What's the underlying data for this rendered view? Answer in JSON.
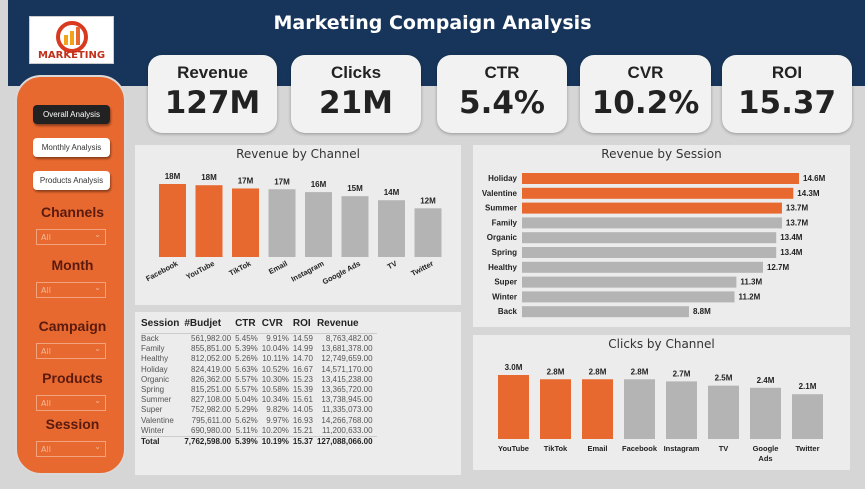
{
  "header": {
    "title": "Marketing Compaign Analysis",
    "logo_text": "MARKETING"
  },
  "sidebar": {
    "nav": [
      "Overall Analysis",
      "Monthly Analysis",
      "Products Analysis"
    ],
    "active": 0,
    "filters": [
      {
        "label": "Channels",
        "value": "All"
      },
      {
        "label": "Month",
        "value": "All"
      },
      {
        "label": "Campaign",
        "value": "All"
      },
      {
        "label": "Products",
        "value": "All"
      },
      {
        "label": "Session",
        "value": "All"
      }
    ]
  },
  "kpis": [
    {
      "label": "Revenue",
      "value": "127M"
    },
    {
      "label": "Clicks",
      "value": "21M"
    },
    {
      "label": "CTR",
      "value": "5.4%"
    },
    {
      "label": "CVR",
      "value": "10.2%"
    },
    {
      "label": "ROI",
      "value": "15.37"
    }
  ],
  "colors": {
    "header": "#17355a",
    "accent": "#e8692f",
    "bar_gray": "#b4b4b4"
  },
  "table": {
    "headers": [
      "Session",
      "#Budjet",
      "CTR",
      "CVR",
      "ROI",
      "Revenue"
    ],
    "rows": [
      [
        "Back",
        "561,982.00",
        "5.45%",
        "9.91%",
        "14.59",
        "8,763,482.00"
      ],
      [
        "Family",
        "855,851.00",
        "5.39%",
        "10.04%",
        "14.99",
        "13,681,378.00"
      ],
      [
        "Healthy",
        "812,052.00",
        "5.26%",
        "10.11%",
        "14.70",
        "12,749,659.00"
      ],
      [
        "Holiday",
        "824,419.00",
        "5.63%",
        "10.52%",
        "16.67",
        "14,571,170.00"
      ],
      [
        "Organic",
        "826,362.00",
        "5.57%",
        "10.30%",
        "15.23",
        "13,415,238.00"
      ],
      [
        "Spring",
        "815,251.00",
        "5.57%",
        "10.58%",
        "15.39",
        "13,365,720.00"
      ],
      [
        "Summer",
        "827,108.00",
        "5.04%",
        "10.34%",
        "15.61",
        "13,738,945.00"
      ],
      [
        "Super",
        "752,982.00",
        "5.29%",
        "9.82%",
        "14.05",
        "11,335,073.00"
      ],
      [
        "Valentine",
        "795,611.00",
        "5.62%",
        "9.97%",
        "16.93",
        "14,266,768.00"
      ],
      [
        "Winter",
        "690,980.00",
        "5.11%",
        "10.20%",
        "15.21",
        "11,200,633.00"
      ]
    ],
    "total": [
      "Total",
      "7,762,598.00",
      "5.39%",
      "10.19%",
      "15.37",
      "127,088,066.00"
    ]
  },
  "chart_data": [
    {
      "type": "bar",
      "title": "Revenue by Channel",
      "categories": [
        "Facebook",
        "YouTube",
        "TikTok",
        "Email",
        "Instagram",
        "Google Ads",
        "TV",
        "Twitter"
      ],
      "values": [
        18,
        17.7,
        16.9,
        16.7,
        16,
        15,
        14,
        12
      ],
      "labels": [
        "18M",
        "18M",
        "17M",
        "17M",
        "16M",
        "15M",
        "14M",
        "12M"
      ],
      "highlighted": 3
    },
    {
      "type": "bar",
      "orientation": "horizontal",
      "title": "Revenue by Session",
      "categories": [
        "Holiday",
        "Valentine",
        "Summer",
        "Family",
        "Organic",
        "Spring",
        "Healthy",
        "Super",
        "Winter",
        "Back"
      ],
      "values": [
        14.6,
        14.3,
        13.7,
        13.7,
        13.4,
        13.4,
        12.7,
        11.3,
        11.2,
        8.8
      ],
      "labels": [
        "14.6M",
        "14.3M",
        "13.7M",
        "13.7M",
        "13.4M",
        "13.4M",
        "12.7M",
        "11.3M",
        "11.2M",
        "8.8M"
      ],
      "highlighted": 3
    },
    {
      "type": "bar",
      "title": "Clicks by Channel",
      "categories": [
        "YouTube",
        "TikTok",
        "Email",
        "Facebook",
        "Instagram",
        "TV",
        "Google Ads",
        "Twitter"
      ],
      "values": [
        3.0,
        2.8,
        2.8,
        2.8,
        2.7,
        2.5,
        2.4,
        2.1
      ],
      "labels": [
        "3.0M",
        "2.8M",
        "2.8M",
        "2.8M",
        "2.7M",
        "2.5M",
        "2.4M",
        "2.1M"
      ],
      "highlighted": 3
    }
  ]
}
